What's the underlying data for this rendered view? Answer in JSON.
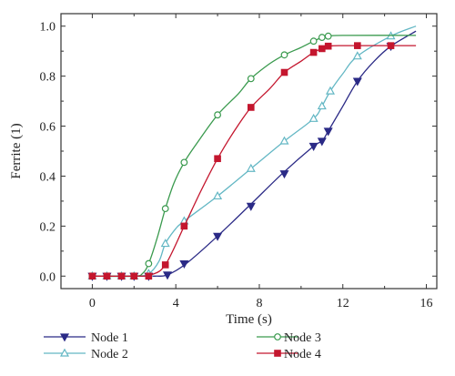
{
  "chart_data": {
    "type": "line",
    "title": "",
    "xlabel": "Time (s)",
    "ylabel": "Ferrite (1)",
    "xlim": [
      -1.5,
      16.5
    ],
    "ylim": [
      -0.05,
      1.05
    ],
    "x_ticks": [
      0,
      4,
      8,
      12,
      16
    ],
    "y_ticks": [
      0.0,
      0.2,
      0.4,
      0.6,
      0.8,
      1.0
    ],
    "x_tick_labels": [
      "0",
      "4",
      "8",
      "12",
      "16"
    ],
    "y_tick_labels": [
      "0.0",
      "0.2",
      "0.4",
      "0.6",
      "0.8",
      "1.0"
    ],
    "grid": false,
    "legend_position": "bottom",
    "series": [
      {
        "name": "Node 1",
        "color": "#2b2a86",
        "marker": "triangle-down",
        "filled": true,
        "curve": [
          [
            0,
            0
          ],
          [
            2,
            0
          ],
          [
            3,
            0
          ],
          [
            3.6,
            0.005
          ],
          [
            4.5,
            0.05
          ],
          [
            6,
            0.16
          ],
          [
            7.5,
            0.28
          ],
          [
            9.1,
            0.41
          ],
          [
            10.6,
            0.52
          ],
          [
            11,
            0.54
          ],
          [
            11.3,
            0.58
          ],
          [
            12,
            0.68
          ],
          [
            12.7,
            0.78
          ],
          [
            13.5,
            0.86
          ],
          [
            14.3,
            0.92
          ],
          [
            15.5,
            0.98
          ]
        ],
        "markers": [
          [
            0,
            0
          ],
          [
            0.7,
            0
          ],
          [
            1.4,
            0
          ],
          [
            2,
            0
          ],
          [
            2.7,
            0
          ],
          [
            3.6,
            0.005
          ],
          [
            4.4,
            0.05
          ],
          [
            6,
            0.16
          ],
          [
            7.6,
            0.28
          ],
          [
            9.2,
            0.41
          ],
          [
            10.6,
            0.52
          ],
          [
            11,
            0.54
          ],
          [
            11.3,
            0.58
          ],
          [
            12.7,
            0.78
          ],
          [
            14.3,
            0.92
          ]
        ]
      },
      {
        "name": "Node 2",
        "color": "#63b7c4",
        "marker": "triangle-up",
        "filled": false,
        "curve": [
          [
            0,
            0
          ],
          [
            2,
            0
          ],
          [
            2.7,
            0.01
          ],
          [
            3.2,
            0.06
          ],
          [
            3.5,
            0.13
          ],
          [
            4,
            0.19
          ],
          [
            4.4,
            0.22
          ],
          [
            6,
            0.32
          ],
          [
            7.6,
            0.43
          ],
          [
            9.2,
            0.54
          ],
          [
            10.6,
            0.63
          ],
          [
            11,
            0.68
          ],
          [
            11.4,
            0.74
          ],
          [
            12,
            0.81
          ],
          [
            12.7,
            0.88
          ],
          [
            14.3,
            0.96
          ],
          [
            15.5,
            1.0
          ]
        ],
        "markers": [
          [
            0,
            0
          ],
          [
            0.7,
            0
          ],
          [
            1.4,
            0
          ],
          [
            2,
            0
          ],
          [
            2.7,
            0.01
          ],
          [
            3.5,
            0.13
          ],
          [
            4.4,
            0.22
          ],
          [
            6,
            0.32
          ],
          [
            7.6,
            0.43
          ],
          [
            9.2,
            0.54
          ],
          [
            10.6,
            0.63
          ],
          [
            11,
            0.68
          ],
          [
            11.4,
            0.74
          ],
          [
            12.7,
            0.88
          ],
          [
            14.3,
            0.96
          ]
        ]
      },
      {
        "name": "Node 3",
        "color": "#3a9a4e",
        "marker": "circle",
        "filled": false,
        "curve": [
          [
            0,
            0
          ],
          [
            2,
            0
          ],
          [
            2.4,
            0.01
          ],
          [
            2.7,
            0.05
          ],
          [
            3.1,
            0.15
          ],
          [
            3.5,
            0.27
          ],
          [
            3.9,
            0.37
          ],
          [
            4.4,
            0.455
          ],
          [
            5,
            0.53
          ],
          [
            6,
            0.645
          ],
          [
            7,
            0.73
          ],
          [
            7.6,
            0.79
          ],
          [
            8.5,
            0.85
          ],
          [
            9.2,
            0.885
          ],
          [
            10,
            0.915
          ],
          [
            10.6,
            0.94
          ],
          [
            11,
            0.955
          ],
          [
            11.3,
            0.96
          ],
          [
            12,
            0.963
          ],
          [
            15.5,
            0.963
          ]
        ],
        "markers": [
          [
            0,
            0
          ],
          [
            0.7,
            0
          ],
          [
            1.4,
            0
          ],
          [
            2,
            0
          ],
          [
            2.7,
            0.05
          ],
          [
            3.5,
            0.27
          ],
          [
            4.4,
            0.455
          ],
          [
            6,
            0.645
          ],
          [
            7.6,
            0.79
          ],
          [
            9.2,
            0.885
          ],
          [
            10.6,
            0.94
          ],
          [
            11,
            0.955
          ],
          [
            11.3,
            0.96
          ]
        ]
      },
      {
        "name": "Node 4",
        "color": "#c4162e",
        "marker": "square",
        "filled": true,
        "curve": [
          [
            0,
            0
          ],
          [
            2,
            0
          ],
          [
            2.8,
            0.005
          ],
          [
            3.5,
            0.045
          ],
          [
            4.4,
            0.2
          ],
          [
            5.2,
            0.34
          ],
          [
            6,
            0.47
          ],
          [
            6.8,
            0.58
          ],
          [
            7.6,
            0.675
          ],
          [
            8.5,
            0.75
          ],
          [
            9.2,
            0.815
          ],
          [
            10,
            0.86
          ],
          [
            10.6,
            0.895
          ],
          [
            11,
            0.91
          ],
          [
            11.4,
            0.92
          ],
          [
            12,
            0.922
          ],
          [
            15.5,
            0.922
          ]
        ],
        "markers": [
          [
            0,
            0
          ],
          [
            0.7,
            0
          ],
          [
            1.4,
            0
          ],
          [
            2,
            0
          ],
          [
            2.7,
            0
          ],
          [
            3.5,
            0.045
          ],
          [
            4.4,
            0.2
          ],
          [
            6,
            0.47
          ],
          [
            7.6,
            0.675
          ],
          [
            9.2,
            0.815
          ],
          [
            10.6,
            0.895
          ],
          [
            11,
            0.91
          ],
          [
            11.3,
            0.92
          ],
          [
            12.7,
            0.922
          ],
          [
            14.3,
            0.922
          ]
        ]
      }
    ]
  }
}
